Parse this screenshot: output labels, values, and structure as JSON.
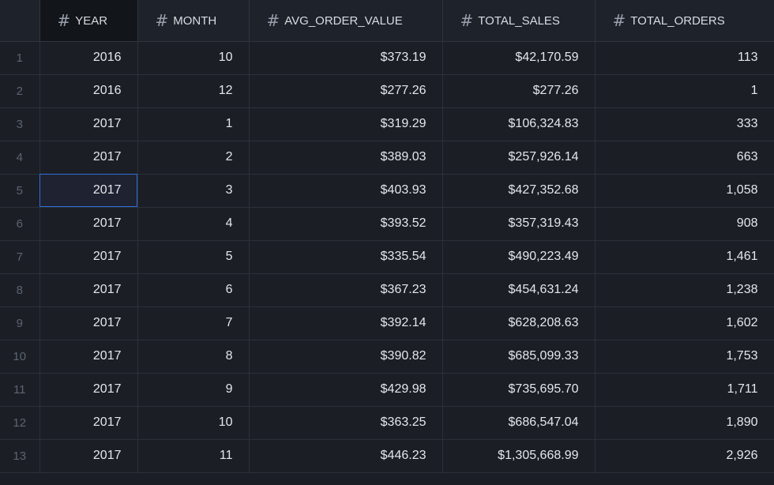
{
  "columns": [
    {
      "name": "YEAR",
      "icon": "hash-icon"
    },
    {
      "name": "MONTH",
      "icon": "hash-icon"
    },
    {
      "name": "AVG_ORDER_VALUE",
      "icon": "hash-icon"
    },
    {
      "name": "TOTAL_SALES",
      "icon": "hash-icon"
    },
    {
      "name": "TOTAL_ORDERS",
      "icon": "hash-icon"
    }
  ],
  "hash_glyph": "#",
  "rows": [
    {
      "n": "1",
      "year": "2016",
      "month": "10",
      "aov": "$373.19",
      "sales": "$42,170.59",
      "orders": "113"
    },
    {
      "n": "2",
      "year": "2016",
      "month": "12",
      "aov": "$277.26",
      "sales": "$277.26",
      "orders": "1"
    },
    {
      "n": "3",
      "year": "2017",
      "month": "1",
      "aov": "$319.29",
      "sales": "$106,324.83",
      "orders": "333"
    },
    {
      "n": "4",
      "year": "2017",
      "month": "2",
      "aov": "$389.03",
      "sales": "$257,926.14",
      "orders": "663"
    },
    {
      "n": "5",
      "year": "2017",
      "month": "3",
      "aov": "$403.93",
      "sales": "$427,352.68",
      "orders": "1,058"
    },
    {
      "n": "6",
      "year": "2017",
      "month": "4",
      "aov": "$393.52",
      "sales": "$357,319.43",
      "orders": "908"
    },
    {
      "n": "7",
      "year": "2017",
      "month": "5",
      "aov": "$335.54",
      "sales": "$490,223.49",
      "orders": "1,461"
    },
    {
      "n": "8",
      "year": "2017",
      "month": "6",
      "aov": "$367.23",
      "sales": "$454,631.24",
      "orders": "1,238"
    },
    {
      "n": "9",
      "year": "2017",
      "month": "7",
      "aov": "$392.14",
      "sales": "$628,208.63",
      "orders": "1,602"
    },
    {
      "n": "10",
      "year": "2017",
      "month": "8",
      "aov": "$390.82",
      "sales": "$685,099.33",
      "orders": "1,753"
    },
    {
      "n": "11",
      "year": "2017",
      "month": "9",
      "aov": "$429.98",
      "sales": "$735,695.70",
      "orders": "1,711"
    },
    {
      "n": "12",
      "year": "2017",
      "month": "10",
      "aov": "$363.25",
      "sales": "$686,547.04",
      "orders": "1,890"
    },
    {
      "n": "13",
      "year": "2017",
      "month": "11",
      "aov": "$446.23",
      "sales": "$1,305,668.99",
      "orders": "2,926"
    }
  ],
  "selection": {
    "row": 4,
    "column": "year"
  },
  "colors": {
    "background": "#1b1e25",
    "header_background": "#1e222b",
    "active_header": "#121519",
    "selection_border": "#2f6fd6",
    "text": "#e4e7ec",
    "row_number": "#5d6470"
  }
}
